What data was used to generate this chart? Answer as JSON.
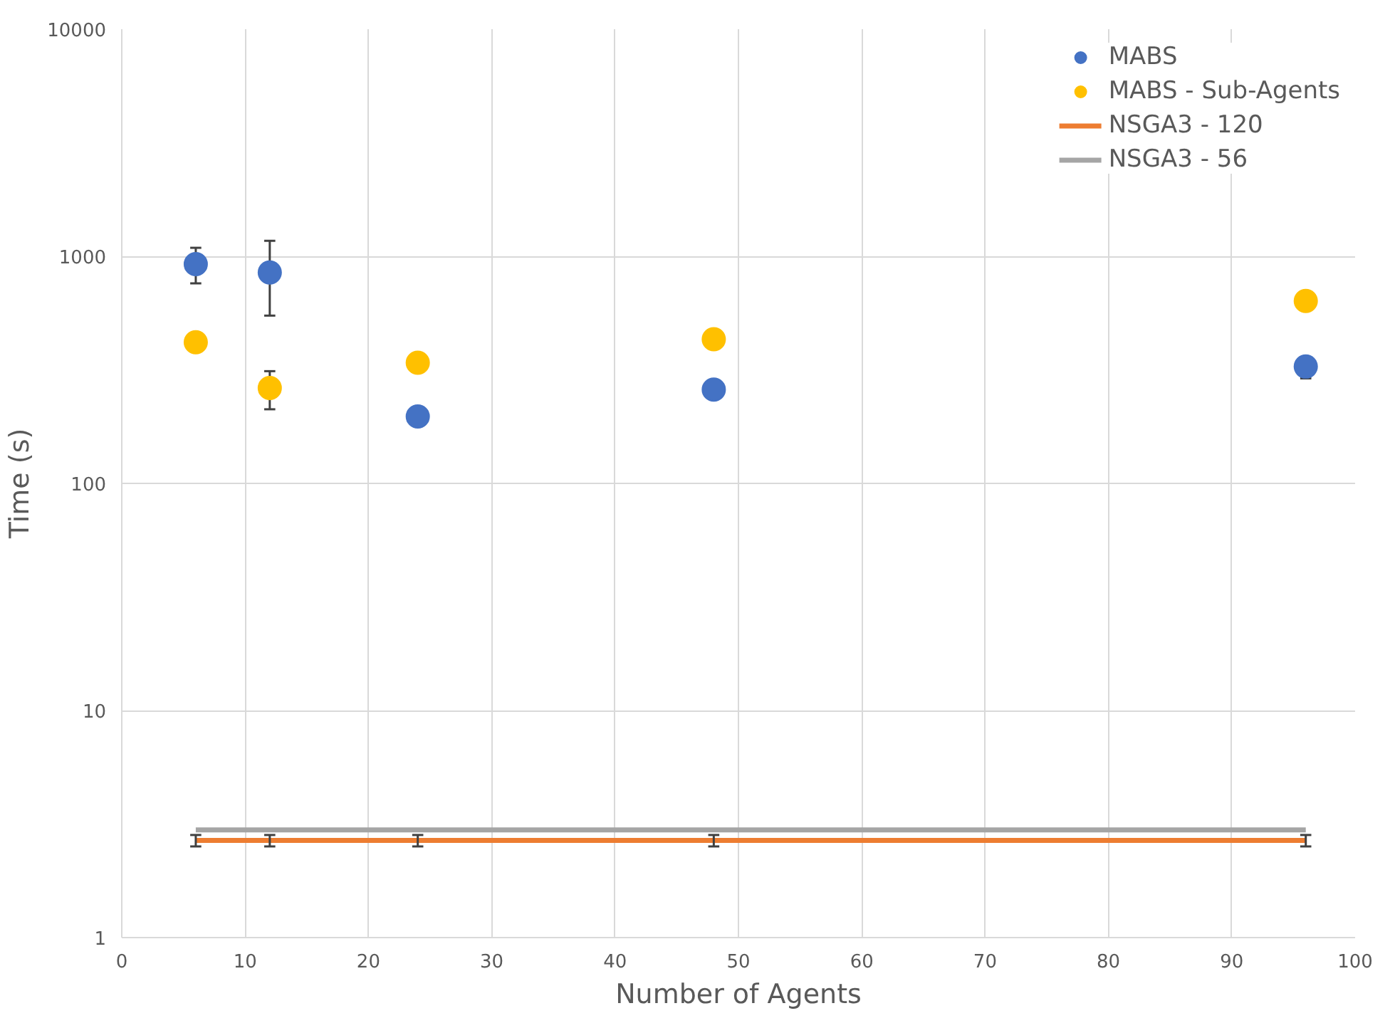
{
  "chart_data": {
    "type": "scatter",
    "xlabel": "Number of Agents",
    "ylabel": "Time (s)",
    "log": "y",
    "grid": true,
    "legend": "top right",
    "xlim": [
      0,
      100
    ],
    "xticks": [
      0,
      10,
      20,
      30,
      40,
      50,
      60,
      70,
      80,
      90,
      100
    ],
    "ylim": [
      1,
      10000
    ],
    "yticks": [
      1,
      10,
      100,
      1000,
      10000
    ],
    "series": [
      {
        "name": "MABS",
        "marker": "circle",
        "color": "#4472c4",
        "x": [
          6,
          12,
          24,
          48,
          96
        ],
        "values": [
          924,
          849,
          197,
          259,
          327
        ],
        "errors": [
          [
            760,
            1090
          ],
          [
            548,
            1170
          ],
          null,
          null,
          [
            290,
            360
          ]
        ]
      },
      {
        "name": "MABS - Sub-Agents",
        "marker": "circle",
        "color": "#ffc000",
        "x": [
          6,
          12,
          24,
          48,
          96
        ],
        "values": [
          418,
          263,
          340,
          431,
          636
        ],
        "errors": [
          null,
          [
            212,
            312
          ],
          null,
          null,
          null
        ]
      },
      {
        "name": "NSGA3 - 120",
        "type": "line",
        "color": "#ed7d31",
        "line_style": "solid",
        "x": [
          6,
          12,
          24,
          48,
          96
        ],
        "values": [
          2.68,
          2.68,
          2.68,
          2.68,
          2.68
        ],
        "errors": [
          [
            2.52,
            2.83
          ],
          [
            2.52,
            2.83
          ],
          [
            2.52,
            2.83
          ],
          [
            2.52,
            2.83
          ],
          [
            2.52,
            2.83
          ]
        ]
      },
      {
        "name": "NSGA3 - 56",
        "type": "line",
        "color": "#a5a5a5",
        "line_style": "solid",
        "x": [
          6,
          12,
          24,
          48,
          96
        ],
        "values": [
          2.98,
          2.98,
          2.98,
          2.98,
          2.98
        ]
      }
    ]
  }
}
